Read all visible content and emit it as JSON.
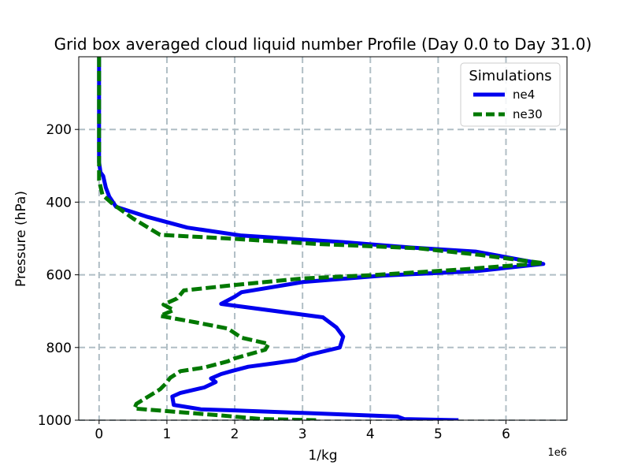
{
  "chart_data": {
    "type": "line",
    "title": "Grid box averaged cloud liquid number Profile (Day 0.0 to Day 31.0)",
    "xlabel": "1/kg",
    "ylabel": "Pressure (hPa)",
    "x_offset_label": "1e6",
    "xlim": [
      -0.3,
      6.9
    ],
    "ylim": [
      1000,
      0
    ],
    "y_inverted": true,
    "x_ticks": [
      0,
      1,
      2,
      3,
      4,
      5,
      6
    ],
    "x_tick_labels": [
      "0",
      "1",
      "2",
      "3",
      "4",
      "5",
      "6"
    ],
    "y_ticks": [
      200,
      400,
      600,
      800,
      1000
    ],
    "y_tick_labels": [
      "200",
      "400",
      "600",
      "800",
      "1000"
    ],
    "grid": true,
    "legend": {
      "title": "Simulations",
      "placement": "upper-right"
    },
    "series": [
      {
        "name": "ne4",
        "color": "#0000ee",
        "style": "solid",
        "points": [
          [
            0.0,
            0
          ],
          [
            0.0,
            100
          ],
          [
            0.0,
            200
          ],
          [
            0.0,
            290
          ],
          [
            0.02,
            318
          ],
          [
            0.06,
            328
          ],
          [
            0.1,
            360
          ],
          [
            0.15,
            385
          ],
          [
            0.25,
            413
          ],
          [
            0.7,
            440
          ],
          [
            1.3,
            470
          ],
          [
            2.1,
            492
          ],
          [
            3.6,
            510
          ],
          [
            4.6,
            525
          ],
          [
            5.55,
            536
          ],
          [
            6.55,
            570
          ],
          [
            5.55,
            590
          ],
          [
            4.2,
            602
          ],
          [
            3.0,
            620
          ],
          [
            2.1,
            648
          ],
          [
            2.0,
            660
          ],
          [
            1.8,
            680
          ],
          [
            3.3,
            717
          ],
          [
            3.5,
            745
          ],
          [
            3.6,
            770
          ],
          [
            3.55,
            800
          ],
          [
            3.1,
            820
          ],
          [
            2.9,
            835
          ],
          [
            2.6,
            843
          ],
          [
            2.2,
            853
          ],
          [
            1.95,
            865
          ],
          [
            1.8,
            873
          ],
          [
            1.65,
            885
          ],
          [
            1.72,
            895
          ],
          [
            1.55,
            910
          ],
          [
            1.2,
            925
          ],
          [
            1.08,
            935
          ],
          [
            1.1,
            958
          ],
          [
            1.5,
            970
          ],
          [
            2.0,
            973
          ],
          [
            3.0,
            980
          ],
          [
            4.4,
            990
          ],
          [
            4.5,
            997
          ],
          [
            5.3,
            1000
          ]
        ]
      },
      {
        "name": "ne30",
        "color": "#007800",
        "style": "dashed",
        "points": [
          [
            0.0,
            0
          ],
          [
            0.0,
            100
          ],
          [
            0.0,
            200
          ],
          [
            0.0,
            300
          ],
          [
            0.0,
            340
          ],
          [
            0.02,
            357
          ],
          [
            0.05,
            380
          ],
          [
            0.2,
            405
          ],
          [
            0.5,
            445
          ],
          [
            0.9,
            490
          ],
          [
            1.9,
            500
          ],
          [
            3.2,
            515
          ],
          [
            4.7,
            527
          ],
          [
            5.6,
            545
          ],
          [
            6.55,
            568
          ],
          [
            5.3,
            586
          ],
          [
            4.0,
            601
          ],
          [
            3.0,
            610
          ],
          [
            2.0,
            628
          ],
          [
            1.25,
            643
          ],
          [
            1.15,
            665
          ],
          [
            0.95,
            682
          ],
          [
            1.1,
            697
          ],
          [
            0.9,
            713
          ],
          [
            1.4,
            730
          ],
          [
            1.9,
            748
          ],
          [
            2.1,
            773
          ],
          [
            2.5,
            790
          ],
          [
            2.45,
            806
          ],
          [
            2.0,
            830
          ],
          [
            1.9,
            838
          ],
          [
            1.55,
            855
          ],
          [
            1.2,
            865
          ],
          [
            1.05,
            883
          ],
          [
            0.98,
            900
          ],
          [
            0.9,
            915
          ],
          [
            0.75,
            932
          ],
          [
            0.55,
            955
          ],
          [
            0.52,
            968
          ],
          [
            1.0,
            975
          ],
          [
            1.8,
            987
          ],
          [
            2.4,
            997
          ],
          [
            3.2,
            1000
          ]
        ]
      }
    ]
  }
}
